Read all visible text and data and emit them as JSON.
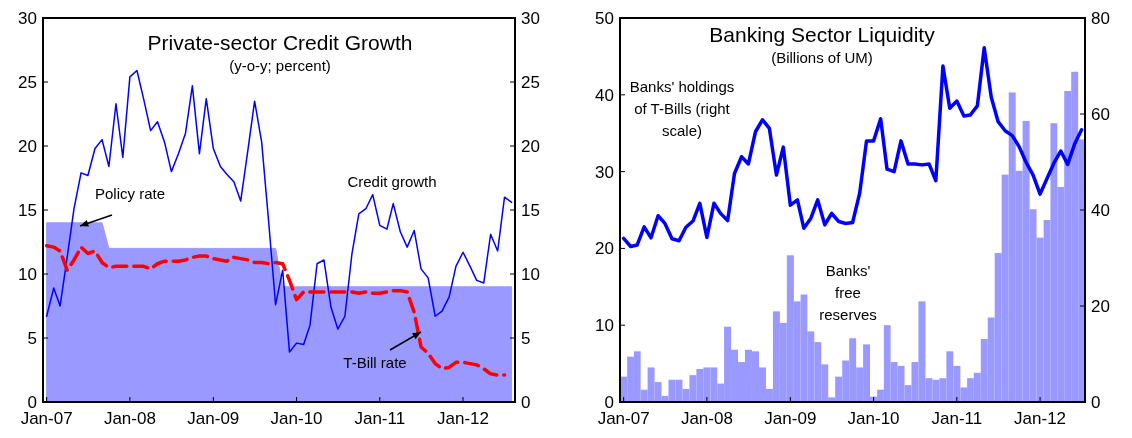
{
  "chart_data": [
    {
      "type": "line",
      "title": "Private-sector Credit Growth",
      "subtitle": "(y-o-y; percent)",
      "x": [
        "2007-01",
        "2007-02",
        "2007-03",
        "2007-04",
        "2007-05",
        "2007-06",
        "2007-07",
        "2007-08",
        "2007-09",
        "2007-10",
        "2007-11",
        "2007-12",
        "2008-01",
        "2008-02",
        "2008-03",
        "2008-04",
        "2008-05",
        "2008-06",
        "2008-07",
        "2008-08",
        "2008-09",
        "2008-10",
        "2008-11",
        "2008-12",
        "2009-01",
        "2009-02",
        "2009-03",
        "2009-04",
        "2009-05",
        "2009-06",
        "2009-07",
        "2009-08",
        "2009-09",
        "2009-10",
        "2009-11",
        "2009-12",
        "2010-01",
        "2010-02",
        "2010-03",
        "2010-04",
        "2010-05",
        "2010-06",
        "2010-07",
        "2010-08",
        "2010-09",
        "2010-10",
        "2010-11",
        "2010-12",
        "2011-01",
        "2011-02",
        "2011-03",
        "2011-04",
        "2011-05",
        "2011-06",
        "2011-07",
        "2011-08",
        "2011-09",
        "2011-10",
        "2011-11",
        "2011-12",
        "2012-01",
        "2012-02",
        "2012-03",
        "2012-04",
        "2012-05",
        "2012-06",
        "2012-07",
        "2012-08"
      ],
      "xlim": [
        "2006-12-16",
        "2012-08-16"
      ],
      "xticks": [
        {
          "value": "2007-01",
          "label": "Jan-07"
        },
        {
          "value": "2008-01",
          "label": "Jan-08"
        },
        {
          "value": "2009-01",
          "label": "Jan-09"
        },
        {
          "value": "2010-01",
          "label": "Jan-10"
        },
        {
          "value": "2011-01",
          "label": "Jan-11"
        },
        {
          "value": "2012-01",
          "label": "Jan-12"
        }
      ],
      "ylim": [
        0,
        30
      ],
      "yticks": [
        0,
        5,
        10,
        15,
        20,
        25,
        30
      ],
      "y2lim": [
        0,
        30
      ],
      "y2ticks": [
        0,
        5,
        10,
        15,
        20,
        25,
        30
      ],
      "series": [
        {
          "name": "Policy rate",
          "type": "area",
          "color": "#9999ff",
          "values": [
            14,
            14,
            14,
            14,
            14,
            14,
            14,
            14,
            14,
            12,
            12,
            12,
            12,
            12,
            12,
            12,
            12,
            12,
            12,
            12,
            12,
            12,
            12,
            12,
            12,
            12,
            12,
            12,
            12,
            12,
            12,
            12,
            12,
            12,
            9,
            9,
            9,
            9,
            9,
            9,
            9,
            9,
            9,
            9,
            9,
            9,
            9,
            9,
            9,
            9,
            9,
            9,
            9,
            9,
            9,
            9,
            9,
            9,
            9,
            9,
            9,
            9,
            9,
            9,
            9,
            9,
            9,
            9
          ]
        },
        {
          "name": "Credit growth",
          "color": "#0000ff",
          "values": [
            6.7,
            8.9,
            7.5,
            11.3,
            15.1,
            17.9,
            17.7,
            19.8,
            20.5,
            18.4,
            23.3,
            19.1,
            25.4,
            25.9,
            23.7,
            21.2,
            21.9,
            20.3,
            18.0,
            19.4,
            21.0,
            24.7,
            19.4,
            23.7,
            19.8,
            18.4,
            17.8,
            17.2,
            15.7,
            19.6,
            23.5,
            20.3,
            14.0,
            7.6,
            10.3,
            3.9,
            4.6,
            4.5,
            6.0,
            10.8,
            11.1,
            7.4,
            5.7,
            6.7,
            11.6,
            14.7,
            15.1,
            16.2,
            13.8,
            13.5,
            15.5,
            13.3,
            12.1,
            13.4,
            10.4,
            9.7,
            6.7,
            7.1,
            8.2,
            10.6,
            11.7,
            10.6,
            9.5,
            9.3,
            13.1,
            11.8,
            16.0,
            15.6
          ]
        },
        {
          "name": "T-Bill rate",
          "line_style": "dashed",
          "color": "#ff0000",
          "values": [
            12.2,
            12.1,
            11.8,
            10.3,
            11.1,
            12.1,
            11.6,
            11.8,
            10.9,
            10.5,
            10.6,
            10.6,
            10.6,
            10.6,
            10.6,
            10.4,
            10.8,
            11.0,
            11.0,
            11.0,
            11.1,
            11.3,
            11.4,
            11.4,
            11.2,
            11.1,
            11.0,
            11.3,
            11.2,
            11.1,
            10.9,
            10.9,
            10.8,
            10.9,
            10.8,
            9.5,
            8.0,
            8.6,
            8.6,
            8.6,
            8.6,
            8.6,
            8.6,
            8.6,
            8.6,
            8.5,
            8.6,
            8.5,
            8.5,
            8.6,
            8.7,
            8.7,
            8.6,
            7.0,
            4.3,
            3.8,
            3.0,
            2.6,
            2.7,
            3.1,
            3.1,
            3.0,
            2.9,
            2.6,
            2.2,
            2.1,
            2.1,
            null
          ]
        }
      ]
    },
    {
      "type": "bar",
      "title": "Banking Sector Liquidity",
      "subtitle": "(Billions of UM)",
      "x": [
        "2007-01",
        "2007-02",
        "2007-03",
        "2007-04",
        "2007-05",
        "2007-06",
        "2007-07",
        "2007-08",
        "2007-09",
        "2007-10",
        "2007-11",
        "2007-12",
        "2008-01",
        "2008-02",
        "2008-03",
        "2008-04",
        "2008-05",
        "2008-06",
        "2008-07",
        "2008-08",
        "2008-09",
        "2008-10",
        "2008-11",
        "2008-12",
        "2009-01",
        "2009-02",
        "2009-03",
        "2009-04",
        "2009-05",
        "2009-06",
        "2009-07",
        "2009-08",
        "2009-09",
        "2009-10",
        "2009-11",
        "2009-12",
        "2010-01",
        "2010-02",
        "2010-03",
        "2010-04",
        "2010-05",
        "2010-06",
        "2010-07",
        "2010-08",
        "2010-09",
        "2010-10",
        "2010-11",
        "2010-12",
        "2011-01",
        "2011-02",
        "2011-03",
        "2011-04",
        "2011-05",
        "2011-06",
        "2011-07",
        "2011-08",
        "2011-09",
        "2011-10",
        "2011-11",
        "2011-12",
        "2012-01",
        "2012-02",
        "2012-03",
        "2012-04",
        "2012-05",
        "2012-06",
        "2012-07"
      ],
      "xlim": [
        "2006-12-16",
        "2012-07-16"
      ],
      "xticks": [
        {
          "value": "2007-01",
          "label": "Jan-07"
        },
        {
          "value": "2008-01",
          "label": "Jan-08"
        },
        {
          "value": "2009-01",
          "label": "Jan-09"
        },
        {
          "value": "2010-01",
          "label": "Jan-10"
        },
        {
          "value": "2011-01",
          "label": "Jan-11"
        },
        {
          "value": "2012-01",
          "label": "Jan-12"
        }
      ],
      "ylim": [
        0,
        50
      ],
      "yticks": [
        0,
        10,
        20,
        30,
        40,
        50
      ],
      "y2lim": [
        0,
        80
      ],
      "y2ticks": [
        0,
        20,
        40,
        60,
        80
      ],
      "series": [
        {
          "name": "Banks' free reserves",
          "color": "#9999ff",
          "values": [
            3.3,
            5.9,
            6.6,
            1.6,
            4.5,
            2.6,
            0.8,
            2.9,
            2.9,
            1.7,
            3.5,
            4.3,
            4.5,
            4.5,
            2.4,
            9.8,
            6.8,
            5.2,
            6.8,
            6.6,
            4.5,
            1.7,
            11.8,
            10.3,
            19.1,
            13.1,
            14.0,
            9.2,
            7.8,
            4.9,
            0.6,
            3.3,
            5.4,
            8.3,
            4.5,
            7.5,
            0.7,
            1.6,
            10.0,
            5.2,
            4.7,
            2.2,
            5.2,
            13.1,
            3.1,
            2.9,
            3.1,
            6.6,
            4.7,
            1.9,
            3.1,
            3.8,
            8.2,
            11.0,
            19.4,
            29.6,
            40.3,
            30.1,
            36.6,
            25.1,
            21.4,
            23.7,
            36.3,
            28.0,
            40.5,
            43.0,
            34.2
          ]
        },
        {
          "name": "Banks' holdings of T-Bills (right scale)",
          "type": "line",
          "axis": "y2",
          "color": "#0000ff",
          "values": [
            34.1,
            32.4,
            32.7,
            36.5,
            34.2,
            38.8,
            37.2,
            34.0,
            33.6,
            36.4,
            37.7,
            41.4,
            34.3,
            41.4,
            39.3,
            37.8,
            47.6,
            51.1,
            49.6,
            56.3,
            58.8,
            57.0,
            47.3,
            53.1,
            41.0,
            42.1,
            36.2,
            38.3,
            42.1,
            36.9,
            39.3,
            37.6,
            37.2,
            37.4,
            43.5,
            54.4,
            54.4,
            59.0,
            48.5,
            48.0,
            54.4,
            49.6,
            49.6,
            49.4,
            49.6,
            46.1,
            70.0,
            61.2,
            62.7,
            59.6,
            59.8,
            61.7,
            73.8,
            63.5,
            58.4,
            56.5,
            55.5,
            53.2,
            49.9,
            47.3,
            43.3,
            46.6,
            49.7,
            52.3,
            49.5,
            53.8,
            56.7
          ]
        }
      ]
    }
  ]
}
